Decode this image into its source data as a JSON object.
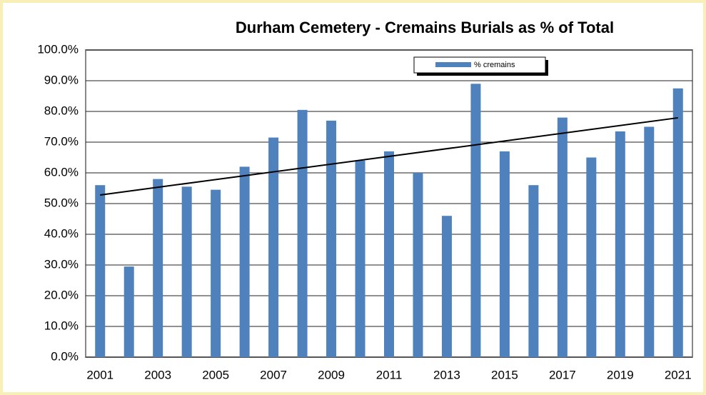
{
  "chart_data": {
    "type": "bar",
    "title": "Durham Cemetery  - Cremains Burials as % of Total",
    "categories": [
      "2001",
      null,
      "2003",
      null,
      "2005",
      null,
      "2007",
      null,
      "2009",
      null,
      "2011",
      null,
      "2013",
      null,
      "2015",
      null,
      "2017",
      null,
      "2019",
      null,
      "2021"
    ],
    "series": [
      {
        "name": "% cremains",
        "color": "#4f81bd",
        "values": [
          56,
          29.5,
          58,
          55.5,
          54.5,
          62,
          71.5,
          80.5,
          77,
          64,
          67,
          60,
          46,
          89,
          67,
          56,
          78,
          65,
          73.5,
          75,
          87.5
        ]
      }
    ],
    "ylim": [
      0,
      100
    ],
    "yticks": [
      {
        "value": 0,
        "label": "0.0%"
      },
      {
        "value": 10,
        "label": "10.0%"
      },
      {
        "value": 20,
        "label": "20.0%"
      },
      {
        "value": 30,
        "label": "30.0%"
      },
      {
        "value": 40,
        "label": "40.0%"
      },
      {
        "value": 50,
        "label": "50.0%"
      },
      {
        "value": 60,
        "label": "60.0%"
      },
      {
        "value": 70,
        "label": "70.0%"
      },
      {
        "value": 80,
        "label": "80.0%"
      },
      {
        "value": 90,
        "label": "90.0%"
      },
      {
        "value": 100,
        "label": "100.0%"
      }
    ],
    "grid": true,
    "trendline": true,
    "legend": "top"
  }
}
